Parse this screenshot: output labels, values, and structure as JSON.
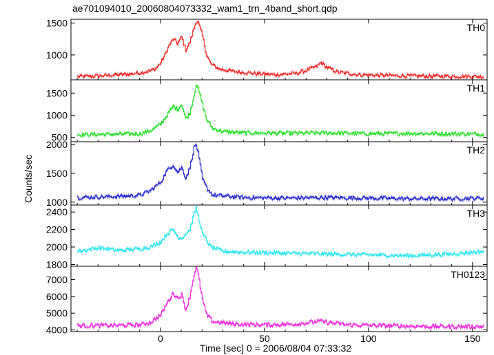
{
  "title": "ae701094010_20060804073332_wam1_trn_4band_short.qdp",
  "ylabel": "Counts/sec",
  "xlabel": "Time [sec] 0 = 2006/08/04 07:33:32",
  "x_ticks": [
    "0",
    "50",
    "100",
    "150"
  ],
  "colors": {
    "frame": "#000000",
    "background": "#ffffff"
  },
  "chart_data": {
    "type": "line",
    "title": "ae701094010_20060804073332_wam1_trn_4band_short.qdp",
    "xlabel": "Time [sec] 0 = 2006/08/04 07:33:32",
    "ylabel": "Counts/sec",
    "xlim": [
      -43,
      157
    ],
    "x_ticks": [
      0,
      50,
      100,
      150
    ],
    "grid": false,
    "panels": [
      {
        "name": "TH0",
        "color": "#ee2222",
        "ylim": [
          610,
          1560
        ],
        "y_ticks": [
          1000,
          1500
        ],
        "data": [
          [
            -40,
            660
          ],
          [
            -30,
            670
          ],
          [
            -20,
            690
          ],
          [
            -15,
            700
          ],
          [
            -10,
            720
          ],
          [
            -5,
            750
          ],
          [
            -2,
            800
          ],
          [
            0,
            880
          ],
          [
            2,
            1000
          ],
          [
            4,
            1150
          ],
          [
            6,
            1250
          ],
          [
            8,
            1180
          ],
          [
            10,
            1280
          ],
          [
            12,
            1080
          ],
          [
            14,
            1200
          ],
          [
            16,
            1420
          ],
          [
            17,
            1530
          ],
          [
            18,
            1510
          ],
          [
            20,
            1300
          ],
          [
            22,
            1000
          ],
          [
            24,
            860
          ],
          [
            28,
            780
          ],
          [
            35,
            740
          ],
          [
            45,
            710
          ],
          [
            55,
            690
          ],
          [
            65,
            710
          ],
          [
            70,
            760
          ],
          [
            75,
            820
          ],
          [
            77,
            880
          ],
          [
            80,
            800
          ],
          [
            85,
            730
          ],
          [
            95,
            690
          ],
          [
            105,
            680
          ],
          [
            120,
            670
          ],
          [
            140,
            665
          ],
          [
            155,
            660
          ]
        ]
      },
      {
        "name": "TH1",
        "color": "#22dd22",
        "ylim": [
          400,
          1800
        ],
        "y_ticks": [
          500,
          1000,
          1500
        ],
        "data": [
          [
            -40,
            560
          ],
          [
            -20,
            570
          ],
          [
            -10,
            580
          ],
          [
            -5,
            650
          ],
          [
            0,
            800
          ],
          [
            3,
            1000
          ],
          [
            6,
            1200
          ],
          [
            8,
            1130
          ],
          [
            10,
            1250
          ],
          [
            12,
            920
          ],
          [
            14,
            1050
          ],
          [
            16,
            1450
          ],
          [
            17,
            1700
          ],
          [
            18,
            1600
          ],
          [
            20,
            1250
          ],
          [
            22,
            900
          ],
          [
            25,
            700
          ],
          [
            30,
            630
          ],
          [
            40,
            600
          ],
          [
            60,
            590
          ],
          [
            80,
            600
          ],
          [
            100,
            580
          ],
          [
            120,
            590
          ],
          [
            140,
            580
          ],
          [
            155,
            570
          ]
        ]
      },
      {
        "name": "TH2",
        "color": "#2222cc",
        "ylim": [
          950,
          2050
        ],
        "y_ticks": [
          1000,
          1500,
          2000
        ],
        "data": [
          [
            -40,
            1080
          ],
          [
            -20,
            1100
          ],
          [
            -10,
            1120
          ],
          [
            -5,
            1200
          ],
          [
            0,
            1350
          ],
          [
            3,
            1550
          ],
          [
            6,
            1650
          ],
          [
            8,
            1520
          ],
          [
            10,
            1600
          ],
          [
            12,
            1420
          ],
          [
            14,
            1600
          ],
          [
            16,
            1950
          ],
          [
            17,
            2000
          ],
          [
            18,
            1850
          ],
          [
            20,
            1400
          ],
          [
            22,
            1250
          ],
          [
            25,
            1120
          ],
          [
            40,
            1080
          ],
          [
            60,
            1070
          ],
          [
            80,
            1080
          ],
          [
            100,
            1070
          ],
          [
            120,
            1060
          ],
          [
            140,
            1060
          ],
          [
            155,
            1070
          ]
        ]
      },
      {
        "name": "TH3",
        "color": "#22e5ee",
        "ylim": [
          1780,
          2480
        ],
        "y_ticks": [
          1800,
          2000,
          2200,
          2400
        ],
        "data": [
          [
            -40,
            1950
          ],
          [
            -30,
            1990
          ],
          [
            -20,
            1960
          ],
          [
            -10,
            1980
          ],
          [
            -5,
            2000
          ],
          [
            0,
            2060
          ],
          [
            3,
            2150
          ],
          [
            6,
            2200
          ],
          [
            8,
            2120
          ],
          [
            10,
            2100
          ],
          [
            14,
            2200
          ],
          [
            16,
            2380
          ],
          [
            17,
            2450
          ],
          [
            18,
            2350
          ],
          [
            20,
            2150
          ],
          [
            24,
            2000
          ],
          [
            30,
            1950
          ],
          [
            40,
            1940
          ],
          [
            60,
            1930
          ],
          [
            80,
            1920
          ],
          [
            100,
            1910
          ],
          [
            120,
            1900
          ],
          [
            140,
            1920
          ],
          [
            155,
            1950
          ]
        ]
      },
      {
        "name": "TH0123",
        "color": "#ee22dd",
        "ylim": [
          3900,
          7800
        ],
        "y_ticks": [
          4000,
          5000,
          6000,
          7000
        ],
        "data": [
          [
            -40,
            4250
          ],
          [
            -20,
            4270
          ],
          [
            -10,
            4300
          ],
          [
            -5,
            4450
          ],
          [
            0,
            4900
          ],
          [
            3,
            5600
          ],
          [
            6,
            6200
          ],
          [
            8,
            5900
          ],
          [
            10,
            6100
          ],
          [
            12,
            5200
          ],
          [
            14,
            6000
          ],
          [
            16,
            7300
          ],
          [
            17,
            7700
          ],
          [
            18,
            7300
          ],
          [
            20,
            5800
          ],
          [
            22,
            4900
          ],
          [
            25,
            4500
          ],
          [
            35,
            4350
          ],
          [
            50,
            4300
          ],
          [
            65,
            4350
          ],
          [
            72,
            4450
          ],
          [
            76,
            4520
          ],
          [
            80,
            4450
          ],
          [
            90,
            4300
          ],
          [
            110,
            4250
          ],
          [
            130,
            4200
          ],
          [
            155,
            4200
          ]
        ]
      }
    ]
  }
}
